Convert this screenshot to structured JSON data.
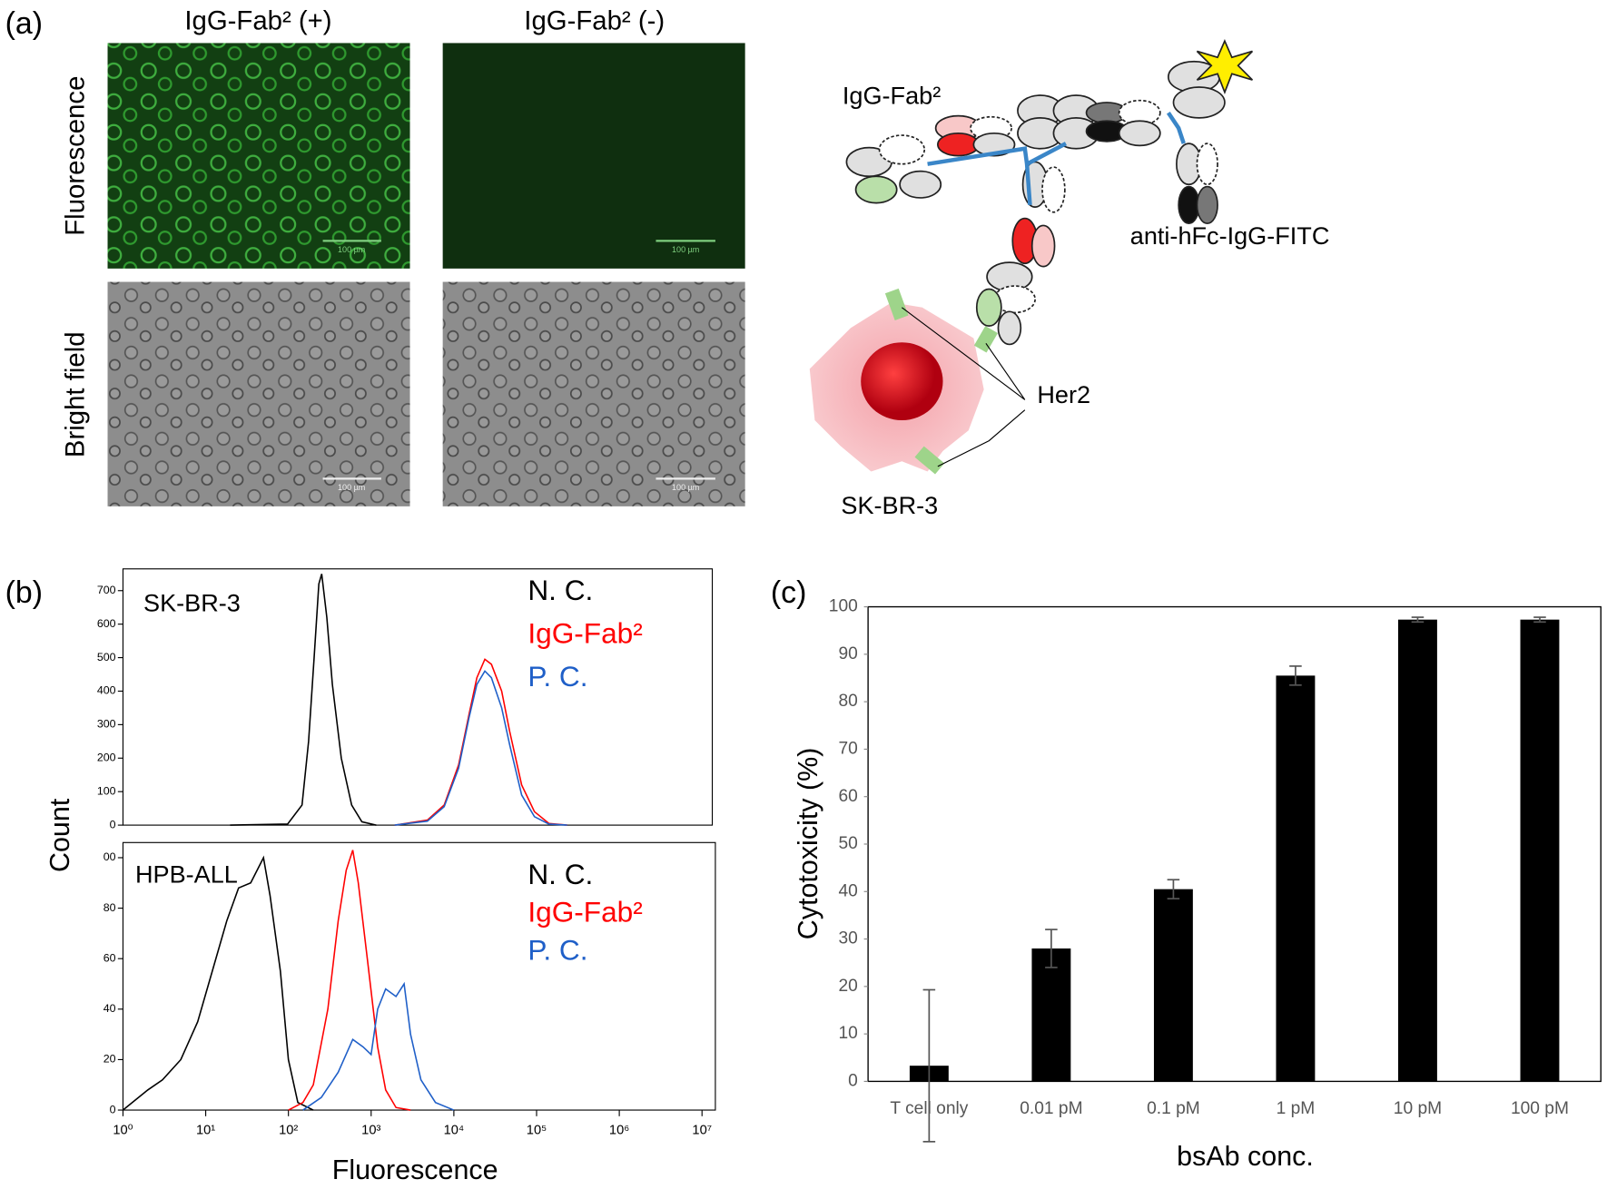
{
  "panel_labels": [
    "(a)",
    "(b)",
    "(c)"
  ],
  "panel_a": {
    "columns": [
      "IgG-Fab² (+)",
      "IgG-Fab² (-)"
    ],
    "rows": [
      "Fluorescence",
      "Bright field"
    ],
    "scale_bar": "100 µm",
    "diagram": {
      "antibody": "IgG-Fab²",
      "detector": "anti-hFc-IgG-FITC",
      "receptor": "Her2",
      "cell": "SK-BR-3"
    }
  },
  "chart_data": [
    {
      "type": "line",
      "annotation": "SK-BR-3",
      "ylabel": "Count",
      "xscale": "log",
      "xlim": [
        1,
        14500000
      ],
      "ylim": [
        0,
        765
      ],
      "yticks": [
        0,
        100,
        200,
        300,
        400,
        500,
        600,
        700
      ],
      "series": [
        {
          "name": "N. C.",
          "color": "#000000",
          "x": [
            20,
            100,
            150,
            180,
            210,
            240,
            260,
            300,
            350,
            450,
            600,
            800,
            1200
          ],
          "values": [
            0,
            3,
            60,
            250,
            500,
            720,
            750,
            620,
            420,
            200,
            60,
            10,
            0
          ]
        },
        {
          "name": "IgG-Fab²",
          "color": "#ff0000",
          "x": [
            2000,
            5000,
            8000,
            12000,
            16000,
            20000,
            25000,
            30000,
            40000,
            50000,
            70000,
            100000,
            150000,
            250000
          ],
          "values": [
            0,
            15,
            60,
            180,
            330,
            440,
            495,
            480,
            400,
            280,
            120,
            40,
            5,
            0
          ]
        },
        {
          "name": "P. C.",
          "color": "#1f5fc8",
          "x": [
            2000,
            5000,
            8000,
            12000,
            16000,
            20000,
            25000,
            30000,
            40000,
            50000,
            70000,
            100000,
            150000,
            250000
          ],
          "values": [
            0,
            12,
            55,
            170,
            320,
            420,
            460,
            440,
            350,
            240,
            90,
            25,
            3,
            0
          ]
        }
      ]
    },
    {
      "type": "line",
      "annotation": "HPB-ALL",
      "xlabel": "Fluorescence",
      "xscale": "log",
      "xlim": [
        1,
        14500000
      ],
      "ylim": [
        0,
        106
      ],
      "xticks": [
        {
          "value": 1,
          "label": "10⁰"
        },
        {
          "value": 10,
          "label": "10¹"
        },
        {
          "value": 100,
          "label": "10²"
        },
        {
          "value": 1000,
          "label": "10³"
        },
        {
          "value": 10000,
          "label": "10⁴"
        },
        {
          "value": 100000,
          "label": "10⁵"
        },
        {
          "value": 1000000,
          "label": "10⁶"
        },
        {
          "value": 10000000,
          "label": "10⁷"
        }
      ],
      "yticks": [
        0,
        20,
        40,
        60,
        80,
        {
          "value": 100,
          "label": "00"
        }
      ],
      "series": [
        {
          "name": "N. C.",
          "color": "#000000",
          "x": [
            1,
            2,
            3,
            5,
            8,
            12,
            18,
            25,
            35,
            50,
            60,
            80,
            100,
            130,
            200
          ],
          "values": [
            0,
            8,
            12,
            20,
            35,
            55,
            75,
            88,
            90,
            100,
            85,
            55,
            20,
            3,
            0
          ]
        },
        {
          "name": "IgG-Fab²",
          "color": "#ff0000",
          "x": [
            100,
            150,
            200,
            300,
            400,
            500,
            600,
            700,
            900,
            1200,
            1500,
            2000,
            3000
          ],
          "values": [
            0,
            3,
            10,
            40,
            75,
            95,
            103,
            90,
            60,
            25,
            8,
            1,
            0
          ]
        },
        {
          "name": "P. C.",
          "color": "#1f5fc8",
          "x": [
            150,
            250,
            400,
            600,
            800,
            1000,
            1200,
            1500,
            2000,
            2500,
            3000,
            4000,
            6000,
            10000
          ],
          "values": [
            0,
            5,
            15,
            28,
            25,
            22,
            40,
            48,
            45,
            50,
            30,
            12,
            3,
            0
          ]
        }
      ]
    },
    {
      "type": "bar",
      "xlabel": "bsAb conc.",
      "ylabel": "Cytotoxicity (%)",
      "categories": [
        "T cell only",
        "0.01 pM",
        "0.1 pM",
        "1 pM",
        "10 pM",
        "100 pM"
      ],
      "values": [
        3.3,
        28,
        40.5,
        85.5,
        97.3,
        97.3
      ],
      "errors": [
        16,
        4,
        2,
        2,
        0.5,
        0.5
      ],
      "color": "#000000",
      "ylim": [
        0,
        100
      ],
      "yticks": [
        0,
        10,
        20,
        30,
        40,
        50,
        60,
        70,
        80,
        90,
        100
      ],
      "grid": false
    }
  ]
}
